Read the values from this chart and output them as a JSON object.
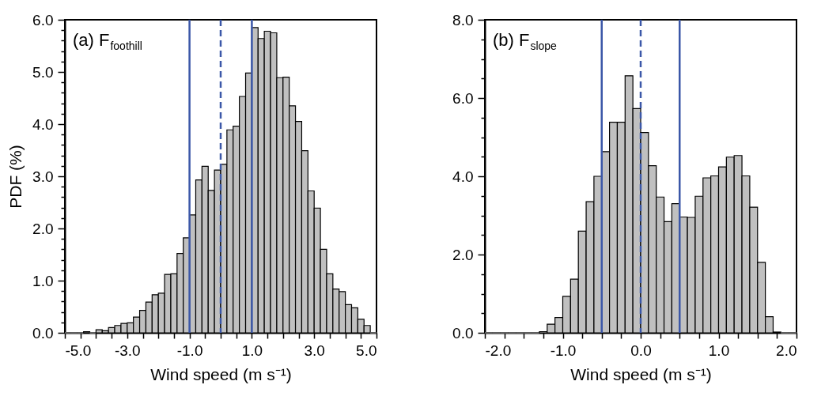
{
  "chart_data": [
    {
      "type": "histogram",
      "title": "(a) F$_{foothill}$",
      "xlabel": "Wind speed (m s⁻¹)",
      "ylabel": "PDF (%)",
      "color": "#c0c0c0",
      "bins": [
        -5.0,
        -4.8,
        -4.6,
        -4.4,
        -4.2,
        -4.0,
        -3.8,
        -3.6,
        -3.4,
        -3.2,
        -3.0,
        -2.8,
        -2.6,
        -2.4,
        -2.2,
        -2.0,
        -1.8,
        -1.6,
        -1.4,
        -1.2,
        -1.0,
        -0.8,
        -0.6,
        -0.4,
        -0.2,
        0.0,
        0.2,
        0.4,
        0.6,
        0.8,
        1.0,
        1.2,
        1.4,
        1.6,
        1.8,
        2.0,
        2.2,
        2.4,
        2.6,
        2.8,
        3.0,
        3.2,
        3.4,
        3.6,
        3.8,
        4.0,
        4.2,
        4.4,
        4.6,
        4.8,
        5.0
      ],
      "values": [
        0,
        0,
        0,
        0.02,
        0,
        0.06,
        0.04,
        0.1,
        0.14,
        0.18,
        0.19,
        0.3,
        0.43,
        0.59,
        0.73,
        0.76,
        1.12,
        1.13,
        1.52,
        1.82,
        2.26,
        2.93,
        3.19,
        2.73,
        3.12,
        3.23,
        3.89,
        3.96,
        4.53,
        4.98,
        5.85,
        5.64,
        5.78,
        5.75,
        4.89,
        4.9,
        4.35,
        4.05,
        3.49,
        2.72,
        2.39,
        1.6,
        1.13,
        0.84,
        0.79,
        0.54,
        0.48,
        0.26,
        0.14,
        0
      ],
      "xlim": [
        -5,
        5
      ],
      "xticks": [
        {
          "value": -5,
          "label": "-5.0"
        },
        {
          "value": -4.5,
          "label": null
        },
        {
          "value": -4,
          "label": null
        },
        {
          "value": -3.5,
          "label": null
        },
        {
          "value": -3,
          "label": "-3.0"
        },
        {
          "value": -2.5,
          "label": null
        },
        {
          "value": -2,
          "label": null
        },
        {
          "value": -1.5,
          "label": null
        },
        {
          "value": -1,
          "label": "-1.0"
        },
        {
          "value": -0.5,
          "label": null
        },
        {
          "value": 0,
          "label": null
        },
        {
          "value": 0.5,
          "label": null
        },
        {
          "value": 1,
          "label": "1.0"
        },
        {
          "value": 1.5,
          "label": null
        },
        {
          "value": 2,
          "label": null
        },
        {
          "value": 2.5,
          "label": null
        },
        {
          "value": 3,
          "label": "3.0"
        },
        {
          "value": 3.5,
          "label": null
        },
        {
          "value": 4,
          "label": null
        },
        {
          "value": 4.5,
          "label": null
        },
        {
          "value": 5,
          "label": "5.0"
        }
      ],
      "ylim": [
        0,
        6
      ],
      "yticks": [
        {
          "value": 0,
          "label": "0.0"
        },
        {
          "value": 0.2,
          "label": null
        },
        {
          "value": 0.4,
          "label": null
        },
        {
          "value": 0.6,
          "label": null
        },
        {
          "value": 0.8,
          "label": null
        },
        {
          "value": 1,
          "label": "1.0"
        },
        {
          "value": 1.2,
          "label": null
        },
        {
          "value": 1.4,
          "label": null
        },
        {
          "value": 1.6,
          "label": null
        },
        {
          "value": 1.8,
          "label": null
        },
        {
          "value": 2,
          "label": "2.0"
        },
        {
          "value": 2.2,
          "label": null
        },
        {
          "value": 2.4,
          "label": null
        },
        {
          "value": 2.6,
          "label": null
        },
        {
          "value": 2.8,
          "label": null
        },
        {
          "value": 3,
          "label": "3.0"
        },
        {
          "value": 3.2,
          "label": null
        },
        {
          "value": 3.4,
          "label": null
        },
        {
          "value": 3.6,
          "label": null
        },
        {
          "value": 3.8,
          "label": null
        },
        {
          "value": 4,
          "label": "4.0"
        },
        {
          "value": 4.2,
          "label": null
        },
        {
          "value": 4.4,
          "label": null
        },
        {
          "value": 4.6,
          "label": null
        },
        {
          "value": 4.8,
          "label": null
        },
        {
          "value": 5,
          "label": "5.0"
        },
        {
          "value": 5.2,
          "label": null
        },
        {
          "value": 5.4,
          "label": null
        },
        {
          "value": 5.6,
          "label": null
        },
        {
          "value": 5.8,
          "label": null
        },
        {
          "value": 6,
          "label": "6.0"
        }
      ],
      "ref_lines": [
        {
          "axis": "x",
          "value": -1,
          "color": "#3b57a8",
          "line_style": "solid"
        },
        {
          "axis": "x",
          "value": 0,
          "color": "#3b57a8",
          "line_style": "dashed"
        },
        {
          "axis": "x",
          "value": 1,
          "color": "#3b57a8",
          "line_style": "solid"
        }
      ]
    },
    {
      "type": "histogram",
      "title": "(b) F$_{slope}$",
      "xlabel": "Wind speed (m s⁻¹)",
      "color": "#c0c0c0",
      "bins": [
        -2.0,
        -1.9,
        -1.8,
        -1.7,
        -1.6,
        -1.5,
        -1.4,
        -1.3,
        -1.2,
        -1.1,
        -1.0,
        -0.9,
        -0.8,
        -0.7,
        -0.6,
        -0.5,
        -0.4,
        -0.3,
        -0.2,
        -0.1,
        0.0,
        0.1,
        0.2,
        0.3,
        0.4,
        0.5,
        0.6,
        0.7,
        0.8,
        0.9,
        1.0,
        1.1,
        1.2,
        1.3,
        1.4,
        1.5,
        1.6,
        1.7,
        1.8,
        1.9,
        2.0
      ],
      "values": [
        0,
        0,
        0,
        0,
        0,
        0,
        0,
        0.03,
        0.22,
        0.39,
        0.93,
        1.37,
        2.6,
        3.35,
        4.0,
        4.63,
        5.38,
        5.38,
        6.57,
        5.73,
        5.12,
        4.27,
        3.47,
        2.84,
        3.3,
        2.96,
        2.95,
        3.49,
        3.96,
        4.01,
        4.24,
        4.49,
        4.53,
        4.01,
        3.21,
        1.8,
        0.41,
        0.02,
        0,
        0
      ],
      "xlim": [
        -2,
        2
      ],
      "xticks": [
        {
          "value": -2,
          "label": "-2.0"
        },
        {
          "value": -1.75,
          "label": null
        },
        {
          "value": -1.5,
          "label": null
        },
        {
          "value": -1.25,
          "label": null
        },
        {
          "value": -1,
          "label": "-1.0"
        },
        {
          "value": -0.75,
          "label": null
        },
        {
          "value": -0.5,
          "label": null
        },
        {
          "value": -0.25,
          "label": null
        },
        {
          "value": 0,
          "label": "0.0"
        },
        {
          "value": 0.25,
          "label": null
        },
        {
          "value": 0.5,
          "label": null
        },
        {
          "value": 0.75,
          "label": null
        },
        {
          "value": 1,
          "label": "1.0"
        },
        {
          "value": 1.25,
          "label": null
        },
        {
          "value": 1.5,
          "label": null
        },
        {
          "value": 1.75,
          "label": null
        },
        {
          "value": 2,
          "label": "2.0"
        }
      ],
      "ylim": [
        0,
        8
      ],
      "yticks": [
        {
          "value": 0,
          "label": "0.0"
        },
        {
          "value": 0.5,
          "label": null
        },
        {
          "value": 1,
          "label": null
        },
        {
          "value": 1.5,
          "label": null
        },
        {
          "value": 2,
          "label": "2.0"
        },
        {
          "value": 2.5,
          "label": null
        },
        {
          "value": 3,
          "label": null
        },
        {
          "value": 3.5,
          "label": null
        },
        {
          "value": 4,
          "label": "4.0"
        },
        {
          "value": 4.5,
          "label": null
        },
        {
          "value": 5,
          "label": null
        },
        {
          "value": 5.5,
          "label": null
        },
        {
          "value": 6,
          "label": "6.0"
        },
        {
          "value": 6.5,
          "label": null
        },
        {
          "value": 7,
          "label": null
        },
        {
          "value": 7.5,
          "label": null
        },
        {
          "value": 8,
          "label": "8.0"
        }
      ],
      "ref_lines": [
        {
          "axis": "x",
          "value": -0.5,
          "color": "#3b57a8",
          "line_style": "solid"
        },
        {
          "axis": "x",
          "value": 0,
          "color": "#3b57a8",
          "line_style": "dashed"
        },
        {
          "axis": "x",
          "value": 0.5,
          "color": "#3b57a8",
          "line_style": "solid"
        }
      ]
    }
  ]
}
